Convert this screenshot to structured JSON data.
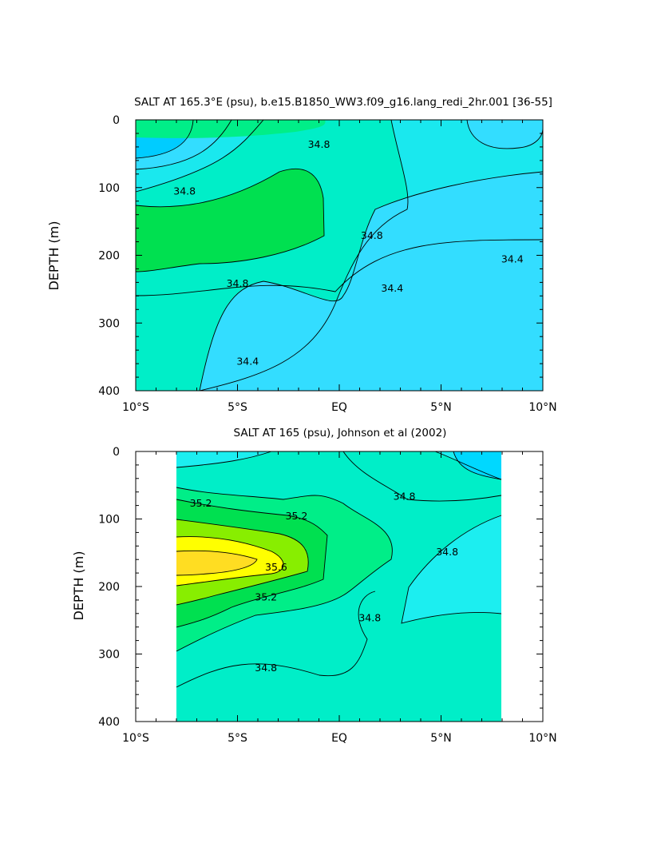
{
  "chart_data": [
    {
      "type": "heatmap",
      "title": "SALT AT 165.3°E (psu), b.e15.B1850_WW3.f09_g16.lang_redi_2hr.001 [36-55]",
      "xlabel": "",
      "ylabel": "DEPTH (m)",
      "x_ticks": [
        "10°S",
        "5°S",
        "EQ",
        "5°N",
        "10°N"
      ],
      "x_tick_values": [
        -10,
        -5,
        0,
        5,
        10
      ],
      "y_ticks": [
        "0",
        "100",
        "200",
        "300",
        "400"
      ],
      "y_tick_values": [
        0,
        100,
        200,
        300,
        400
      ],
      "xlim": [
        -10,
        10
      ],
      "ylim": [
        400,
        0
      ],
      "data_xlim": [
        -10,
        10
      ],
      "contour_labels": [
        {
          "text": "34.8",
          "x": -7.6,
          "y": 107
        },
        {
          "text": "34.8",
          "x": -1.0,
          "y": 38
        },
        {
          "text": "34.8",
          "x": 1.6,
          "y": 172
        },
        {
          "text": "34.8",
          "x": -5.0,
          "y": 243
        },
        {
          "text": "34.4",
          "x": 8.5,
          "y": 207
        },
        {
          "text": "34.4",
          "x": 2.6,
          "y": 250
        },
        {
          "text": "34.4",
          "x": -4.5,
          "y": 358
        }
      ],
      "levels": [
        34.2,
        34.4,
        34.6,
        34.8,
        35.0,
        35.2
      ],
      "colors": [
        "#00ccff",
        "#33ddff",
        "#1ae8ee",
        "#00eec8",
        "#00ee88",
        "#00e050"
      ]
    },
    {
      "type": "heatmap",
      "title": "SALT AT 165 (psu), Johnson et al (2002)",
      "xlabel": "",
      "ylabel": "DEPTH (m)",
      "x_ticks": [
        "10°S",
        "5°S",
        "EQ",
        "5°N",
        "10°N"
      ],
      "x_tick_values": [
        -10,
        -5,
        0,
        5,
        10
      ],
      "y_ticks": [
        "0",
        "100",
        "200",
        "300",
        "400"
      ],
      "y_tick_values": [
        0,
        100,
        200,
        300,
        400
      ],
      "xlim": [
        -10,
        10
      ],
      "ylim": [
        400,
        0
      ],
      "data_xlim": [
        -8,
        8
      ],
      "contour_labels": [
        {
          "text": "35.2",
          "x": -6.8,
          "y": 78
        },
        {
          "text": "35.2",
          "x": -2.1,
          "y": 97
        },
        {
          "text": "35.6",
          "x": -3.1,
          "y": 173
        },
        {
          "text": "35.2",
          "x": -3.6,
          "y": 217
        },
        {
          "text": "34.8",
          "x": 3.2,
          "y": 68
        },
        {
          "text": "34.8",
          "x": 5.3,
          "y": 150
        },
        {
          "text": "34.8",
          "x": 1.5,
          "y": 248
        },
        {
          "text": "34.8",
          "x": -3.6,
          "y": 322
        }
      ],
      "levels": [
        34.4,
        34.6,
        34.8,
        35.0,
        35.2,
        35.4,
        35.6,
        35.8
      ],
      "colors": [
        "#00d8ff",
        "#1ceef0",
        "#00eec8",
        "#00ee88",
        "#00e050",
        "#88ee00",
        "#ffff00",
        "#ffdd22"
      ]
    }
  ]
}
